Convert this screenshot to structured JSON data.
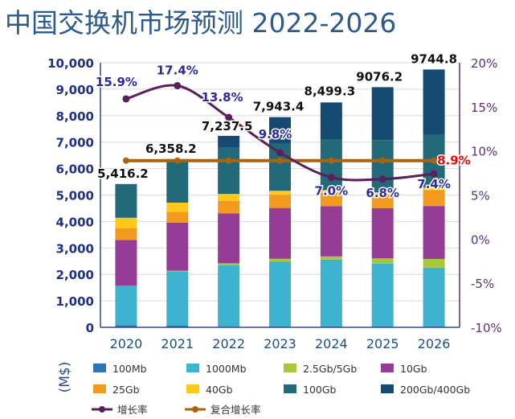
{
  "chart_data": {
    "type": "bar",
    "title": "中国交换机市场预测  2022-2026",
    "ylabel": "(M$)",
    "categories": [
      "2020",
      "2021",
      "2022",
      "2023",
      "2024",
      "2025",
      "2026"
    ],
    "ylim": [
      0,
      10000
    ],
    "yticks": [
      "0",
      "1,000",
      "2,000",
      "3,000",
      "4,000",
      "5,000",
      "6,000",
      "7,000",
      "8,000",
      "9,000",
      "10,000"
    ],
    "y2lim": [
      -10,
      20
    ],
    "y2ticks": [
      "-10%",
      "-5%",
      "0%",
      "5%",
      "10%",
      "15%",
      "20%"
    ],
    "stacked": true,
    "series": [
      {
        "name": "100Mb",
        "color": "#2e75b6",
        "values": [
          80,
          60,
          20,
          10,
          10,
          5,
          5
        ]
      },
      {
        "name": "1000Mb",
        "color": "#3db3cf",
        "values": [
          1500,
          2050,
          2330,
          2480,
          2550,
          2400,
          2250
        ]
      },
      {
        "name": "2.5Gb/5Gb",
        "color": "#a8c83c",
        "values": [
          0,
          30,
          70,
          100,
          120,
          200,
          330
        ]
      },
      {
        "name": "10Gb",
        "color": "#953c96",
        "values": [
          1720,
          1820,
          1880,
          1920,
          1900,
          1900,
          2000
        ]
      },
      {
        "name": "25Gb",
        "color": "#f39a1e",
        "values": [
          450,
          400,
          480,
          500,
          500,
          500,
          600
        ]
      },
      {
        "name": "40Gb",
        "color": "#ffc91a",
        "values": [
          390,
          350,
          260,
          150,
          110,
          100,
          100
        ]
      },
      {
        "name": "100Gb",
        "color": "#22697a",
        "values": [
          1276.2,
          1648.2,
          1747.5,
          1783.4,
          1909.3,
          1971.2,
          2009.8
        ]
      },
      {
        "name": "200Gb/400Gb",
        "color": "#154a73",
        "values": [
          0,
          0,
          450,
          1000,
          1400,
          2000,
          2450
        ]
      }
    ],
    "totals": [
      5416.2,
      6358.2,
      7237.5,
      7943.4,
      8499.3,
      9076.2,
      9744.8
    ],
    "total_labels": [
      "5,416.2",
      "6,358.2",
      "7,237.5",
      "7,943.4",
      "8,499.3",
      "9076.2",
      "9744.8"
    ],
    "growth_line": {
      "name": "增长率",
      "color": "#5b1f5e",
      "values": [
        15.9,
        17.4,
        13.8,
        9.8,
        7.0,
        6.8,
        7.4
      ],
      "labels": [
        "15.9%",
        "17.4%",
        "13.8%",
        "9.8%",
        "7.0%",
        "6.8%",
        "7.4%"
      ]
    },
    "cagr_line": {
      "name": "复合增长率",
      "color": "#a8650e",
      "value": 8.9,
      "label": "8.9%",
      "label_color": "#ff0000"
    },
    "legend_position": "bottom"
  }
}
